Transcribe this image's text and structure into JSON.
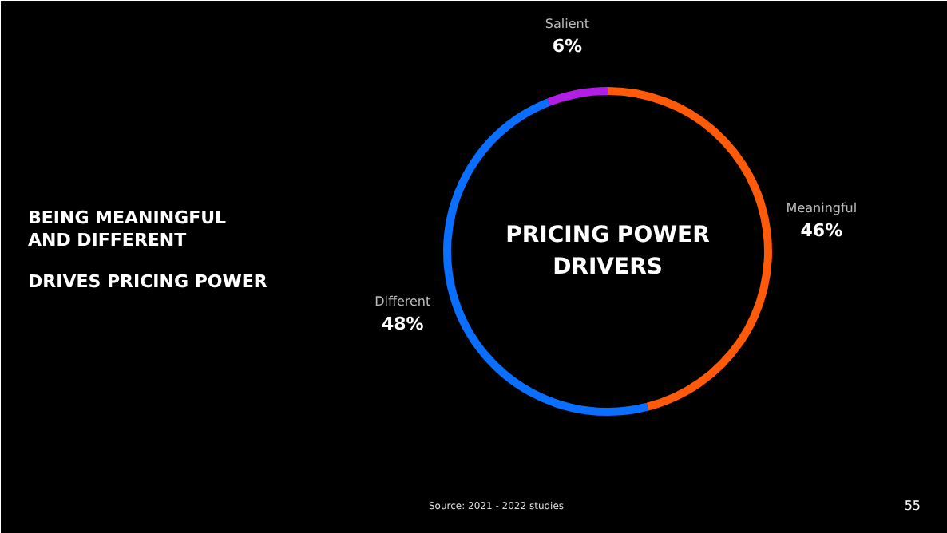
{
  "chart_data": {
    "type": "donut",
    "title": "BEING MEANINGFUL AND DIFFERENT",
    "subtitle": "DRIVES PRICING POWER",
    "categories": [
      "Salient",
      "Meaningful",
      "Different"
    ],
    "values": [
      6,
      46,
      48
    ],
    "colors": [
      "#b31ee6",
      "#ff5a0a",
      "#0a6eff"
    ],
    "value_labels": [
      "6%",
      "46%",
      "48%"
    ],
    "annotations": [
      "PRICING POWER DRIVERS",
      "Source: 2021 - 2022 studies",
      "55"
    ]
  }
}
